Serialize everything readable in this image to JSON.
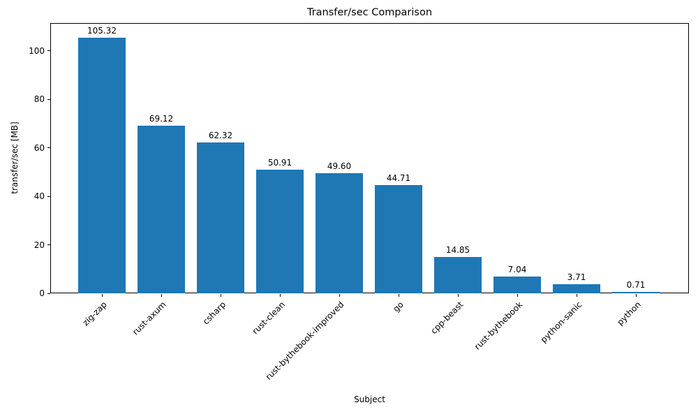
{
  "chart_data": {
    "type": "bar",
    "title": "Transfer/sec Comparison",
    "xlabel": "Subject",
    "ylabel": "transfer/sec [MB]",
    "categories": [
      "zig-zap",
      "rust-axum",
      "csharp",
      "rust-clean",
      "rust-bythebook-improved",
      "go",
      "cpp-beast",
      "rust-bythebook",
      "python-sanic",
      "python"
    ],
    "values": [
      105.32,
      69.12,
      62.32,
      50.91,
      49.6,
      44.71,
      14.85,
      7.04,
      3.71,
      0.71
    ],
    "value_labels": [
      "105.32",
      "69.12",
      "62.32",
      "50.91",
      "49.60",
      "44.71",
      "14.85",
      "7.04",
      "3.71",
      "0.71"
    ],
    "yticks": [
      0,
      20,
      40,
      60,
      80,
      100
    ],
    "ylim": [
      0,
      111.5
    ],
    "bar_color": "#1f77b4",
    "grid": false,
    "legend": null
  }
}
